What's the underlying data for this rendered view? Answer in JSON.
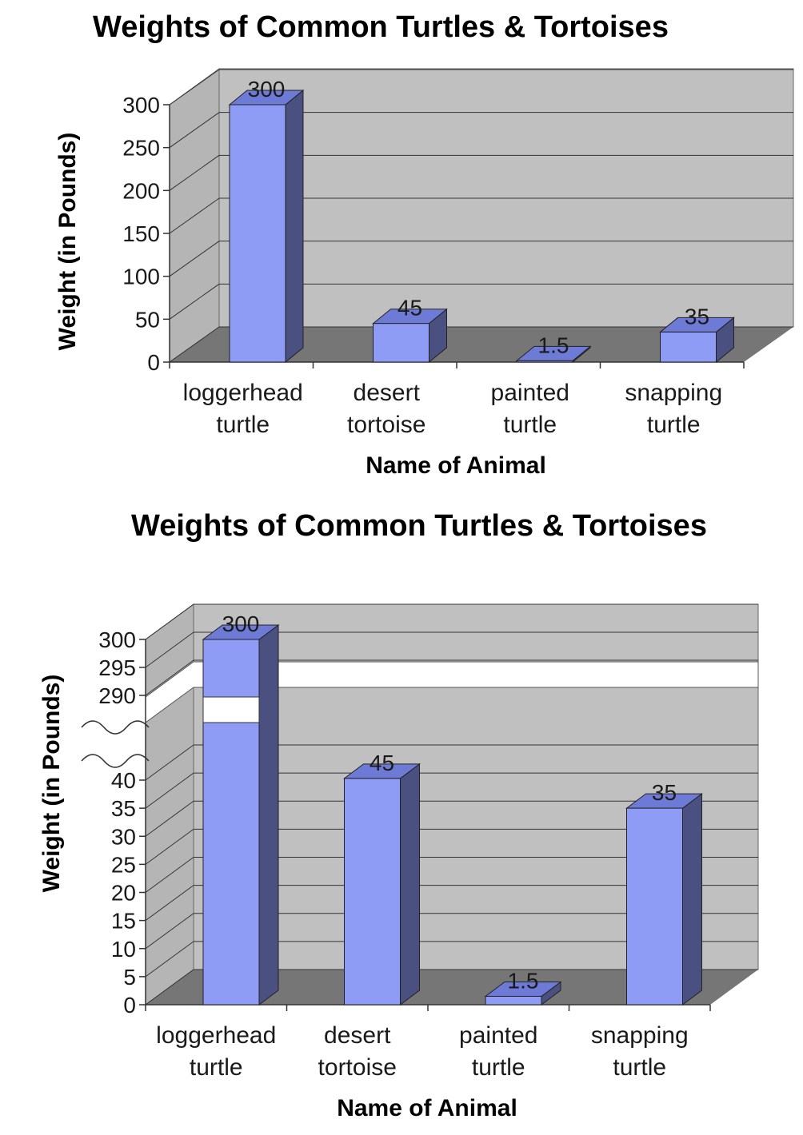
{
  "chart_data": [
    {
      "type": "bar",
      "title": "Weights of Common Turtles & Tortoises",
      "xlabel": "Name of Animal",
      "ylabel": "Weight  (in Pounds)",
      "categories": [
        [
          "loggerhead",
          "turtle"
        ],
        [
          "desert",
          "tortoise"
        ],
        [
          "painted",
          "turtle"
        ],
        [
          "snapping",
          "turtle"
        ]
      ],
      "values": [
        300,
        45,
        1.5,
        35
      ],
      "data_labels": [
        "300",
        "45",
        "1.5",
        "35"
      ],
      "yticks": [
        "0",
        "50",
        "100",
        "150",
        "200",
        "250",
        "300"
      ],
      "ylim": [
        0,
        300
      ],
      "grid": true,
      "style": "3d",
      "colors": {
        "bar_front": "#8f9cf6",
        "bar_top": "#6d7ad6",
        "bar_side": "#4a507f",
        "wall": "#c0c0c0",
        "floor": "#767676"
      }
    },
    {
      "type": "bar",
      "title": "Weights of Common Turtles & Tortoises",
      "xlabel": "Name of Animal",
      "ylabel": "Weight  (in Pounds)",
      "categories": [
        [
          "loggerhead",
          "turtle"
        ],
        [
          "desert",
          "tortoise"
        ],
        [
          "painted",
          "turtle"
        ],
        [
          "snapping",
          "turtle"
        ]
      ],
      "values": [
        300,
        45,
        1.5,
        35
      ],
      "data_labels": [
        "300",
        "45",
        "1.5",
        "35"
      ],
      "yticks_lower": [
        "0",
        "5",
        "10",
        "15",
        "20",
        "25",
        "30",
        "35",
        "40"
      ],
      "yticks_upper": [
        "290",
        "295",
        "300"
      ],
      "ylim_lower": [
        0,
        40
      ],
      "ylim_upper": [
        290,
        300
      ],
      "axis_break": true,
      "grid": true,
      "style": "3d",
      "colors": {
        "bar_front": "#8f9cf6",
        "bar_top": "#6d7ad6",
        "bar_side": "#4a507f",
        "wall": "#c0c0c0",
        "floor": "#767676"
      }
    }
  ]
}
